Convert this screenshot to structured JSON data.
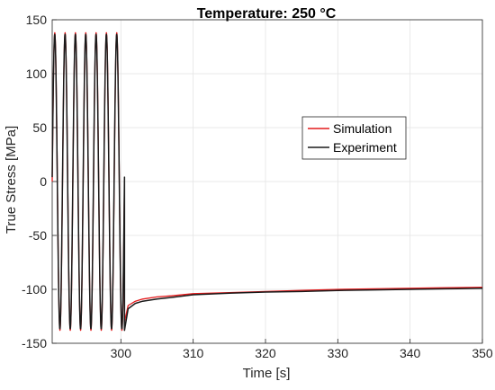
{
  "chart_data": {
    "type": "line",
    "title": "Temperature: 250 °C",
    "xlabel": "Time [s]",
    "ylabel": "True Stress [MPa]",
    "xlim": [
      290.5,
      350
    ],
    "ylim": [
      -150,
      150
    ],
    "x_ticks": [
      300,
      310,
      320,
      330,
      340,
      350
    ],
    "x_tick_labels": [
      "300",
      "310",
      "320",
      "330",
      "340",
      "350"
    ],
    "y_ticks": [
      -150,
      -100,
      -50,
      0,
      50,
      100,
      150
    ],
    "y_tick_labels": [
      "-150",
      "-100",
      "-50",
      "0",
      "50",
      "100",
      "150"
    ],
    "grid": true,
    "legend_position": "center-right",
    "cycles": {
      "start_time": 290.5,
      "end_time": 300.5,
      "count": 7,
      "amplitude": 138
    },
    "series": [
      {
        "name": "Simulation",
        "color": "#e41a1c",
        "x": [
          300.5,
          301,
          302,
          303,
          305,
          307,
          310,
          315,
          320,
          325,
          330,
          335,
          340,
          345,
          350
        ],
        "y": [
          -130,
          -115,
          -111,
          -109,
          -107,
          -106,
          -104,
          -103,
          -102,
          -101,
          -100,
          -99.5,
          -99,
          -98.5,
          -98
        ]
      },
      {
        "name": "Experiment",
        "color": "#1a1a1a",
        "x": [
          300.5,
          301,
          302,
          303,
          305,
          307,
          310,
          315,
          320,
          325,
          330,
          335,
          340,
          345,
          350
        ],
        "y": [
          -138,
          -118,
          -113,
          -111,
          -109,
          -107.5,
          -105,
          -103.5,
          -102.5,
          -102,
          -101,
          -100.5,
          -100,
          -99.5,
          -99
        ]
      }
    ]
  }
}
